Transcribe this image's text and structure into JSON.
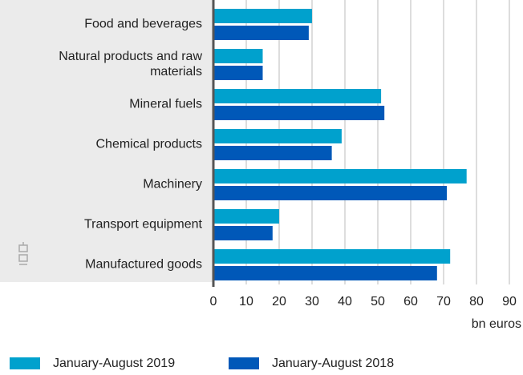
{
  "chart_data": {
    "type": "barh",
    "categories": [
      "Food and beverages",
      "Natural products and raw materials",
      "Mineral fuels",
      "Chemical products",
      "Machinery",
      "Transport equipment",
      "Manufactured goods"
    ],
    "series": [
      {
        "name": "January-August 2019",
        "color": "#00a1cd",
        "values": [
          30,
          15,
          51,
          39,
          77,
          20,
          72
        ]
      },
      {
        "name": "January-August 2018",
        "color": "#0058b8",
        "values": [
          29,
          15,
          52,
          36,
          71,
          18,
          68
        ]
      }
    ],
    "x_label": "bn euros",
    "xlim": [
      0,
      90
    ],
    "xticks": [
      0,
      10,
      20,
      30,
      40,
      50,
      60,
      70,
      80,
      90
    ],
    "grid": true
  }
}
